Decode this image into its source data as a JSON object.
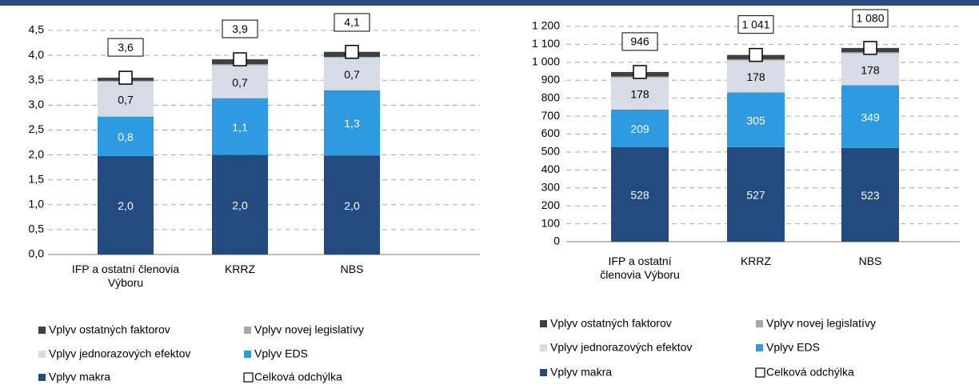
{
  "chart_data": [
    {
      "type": "bar",
      "stacked": true,
      "categories": [
        "IFP a ostatní členovia Výboru",
        "KRRZ",
        "NBS"
      ],
      "ylim": [
        0,
        4.5
      ],
      "yticks": [
        {
          "value": 0,
          "label": "0,0"
        },
        {
          "value": 0.5,
          "label": "0,5"
        },
        {
          "value": 1,
          "label": "1,0"
        },
        {
          "value": 1.5,
          "label": "1,5"
        },
        {
          "value": 2,
          "label": "2,0"
        },
        {
          "value": 2.5,
          "label": "2,5"
        },
        {
          "value": 3,
          "label": "3,0"
        },
        {
          "value": 3.5,
          "label": "3,5"
        },
        {
          "value": 4,
          "label": "4,0"
        },
        {
          "value": 4.5,
          "label": "4,5"
        }
      ],
      "grid": true,
      "series": [
        {
          "name": "Vplyv makra",
          "color": "#234b7f",
          "values": [
            1.98,
            2.0,
            1.99
          ],
          "value_labels": [
            "2,0",
            "2,0",
            "2,0"
          ]
        },
        {
          "name": "Vplyv EDS",
          "color": "#2e9ae0",
          "values": [
            0.79,
            1.14,
            1.31
          ],
          "value_labels": [
            "0,8",
            "1,1",
            "1,3"
          ]
        },
        {
          "name": "Vplyv jednorazových efektov",
          "color": "#d6dbe6",
          "values": [
            0.7,
            0.66,
            0.65
          ],
          "value_labels": [
            "0,7",
            "0,7",
            "0,7"
          ]
        },
        {
          "name": "Vplyv novej legislatívy",
          "color": "#a6a6a6",
          "values": [
            0.02,
            0.02,
            0.02
          ]
        },
        {
          "name": "Vplyv ostatných faktorov",
          "color": "#404040",
          "values": [
            0.06,
            0.1,
            0.1
          ]
        }
      ],
      "total": {
        "name": "Celková odchýlka",
        "values": [
          3.55,
          3.92,
          4.07
        ],
        "value_labels": [
          "3,6",
          "3,9",
          "4,1"
        ]
      }
    },
    {
      "type": "bar",
      "stacked": true,
      "categories": [
        "IFP a ostatní členovia Výboru",
        "KRRZ",
        "NBS"
      ],
      "ylim": [
        0,
        1200
      ],
      "yticks": [
        0,
        100,
        200,
        300,
        400,
        500,
        600,
        700,
        800,
        900,
        {
          "value": 1000,
          "label": "1 000"
        },
        {
          "value": 1100,
          "label": "1 100"
        },
        {
          "value": 1200,
          "label": "1 200"
        }
      ],
      "grid": true,
      "series": [
        {
          "name": "Vplyv makra",
          "color": "#234b7f",
          "values": [
            528,
            527,
            523
          ]
        },
        {
          "name": "Vplyv EDS",
          "color": "#2e9ae0",
          "values": [
            209,
            305,
            349
          ]
        },
        {
          "name": "Vplyv jednorazových efektov",
          "color": "#d6dbe6",
          "values": [
            178,
            178,
            178
          ]
        },
        {
          "name": "Vplyv novej legislatívy",
          "color": "#a6a6a6",
          "values": [
            6,
            6,
            6
          ]
        },
        {
          "name": "Vplyv ostatných faktorov",
          "color": "#404040",
          "values": [
            25,
            25,
            24
          ]
        }
      ],
      "total": {
        "name": "Celková odchýlka",
        "values": [
          946,
          1041,
          1080
        ],
        "value_labels": [
          "946",
          "1 041",
          "1 080"
        ]
      }
    }
  ]
}
